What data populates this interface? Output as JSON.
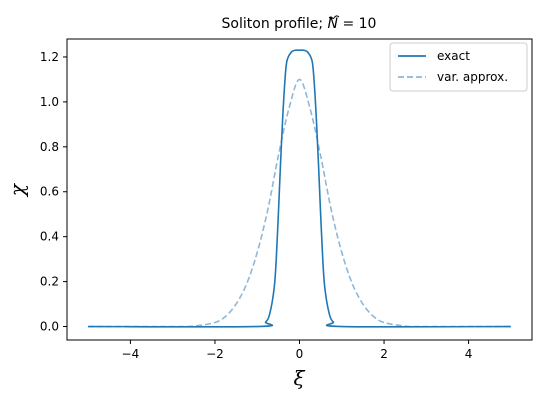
{
  "chart_data": {
    "type": "line",
    "title": "Soliton profile; Ñ = 10",
    "title_prefix": "Soliton profile; ",
    "title_var": "N",
    "title_suffix": " = 10",
    "xlabel": "ξ",
    "ylabel": "χ",
    "xlim": [
      -5.5,
      5.5
    ],
    "ylim": [
      -0.06,
      1.28
    ],
    "xticks": [
      -4,
      -2,
      0,
      2,
      4
    ],
    "yticks": [
      0.0,
      0.2,
      0.4,
      0.6,
      0.8,
      1.0,
      1.2
    ],
    "xtick_labels": [
      "−4",
      "−2",
      "0",
      "2",
      "4"
    ],
    "ytick_labels": [
      "0.0",
      "0.2",
      "0.4",
      "0.6",
      "0.8",
      "1.0",
      "1.2"
    ],
    "grid": false,
    "legend_position": "top-right",
    "series": [
      {
        "name": "exact",
        "style": "solid",
        "color": "#1f77b4",
        "x": [
          -5.0,
          -1.0,
          -0.8,
          -0.7,
          -0.6,
          -0.55,
          -0.5,
          -0.45,
          -0.4,
          -0.35,
          -0.3,
          -0.2,
          -0.1,
          0.0,
          0.1,
          0.2,
          0.3,
          0.35,
          0.4,
          0.45,
          0.5,
          0.55,
          0.6,
          0.7,
          0.8,
          1.0,
          5.0
        ],
        "y": [
          0.0,
          0.0,
          0.02,
          0.06,
          0.17,
          0.3,
          0.5,
          0.72,
          0.92,
          1.08,
          1.18,
          1.22,
          1.23,
          1.23,
          1.23,
          1.22,
          1.18,
          1.08,
          0.92,
          0.72,
          0.5,
          0.3,
          0.17,
          0.06,
          0.02,
          0.0,
          0.0
        ]
      },
      {
        "name": "var. approx.",
        "style": "dashed",
        "color": "#8fb8d8",
        "x": [
          -5.0,
          -3.0,
          -2.5,
          -2.0,
          -1.75,
          -1.5,
          -1.25,
          -1.0,
          -0.75,
          -0.5,
          -0.25,
          0.0,
          0.25,
          0.5,
          0.75,
          1.0,
          1.25,
          1.5,
          1.75,
          2.0,
          2.5,
          3.0,
          5.0
        ],
        "y": [
          0.0,
          0.0,
          0.002,
          0.018,
          0.045,
          0.1,
          0.19,
          0.33,
          0.52,
          0.76,
          0.97,
          1.1,
          0.97,
          0.76,
          0.52,
          0.33,
          0.19,
          0.1,
          0.045,
          0.018,
          0.002,
          0.0,
          0.0
        ]
      }
    ]
  }
}
